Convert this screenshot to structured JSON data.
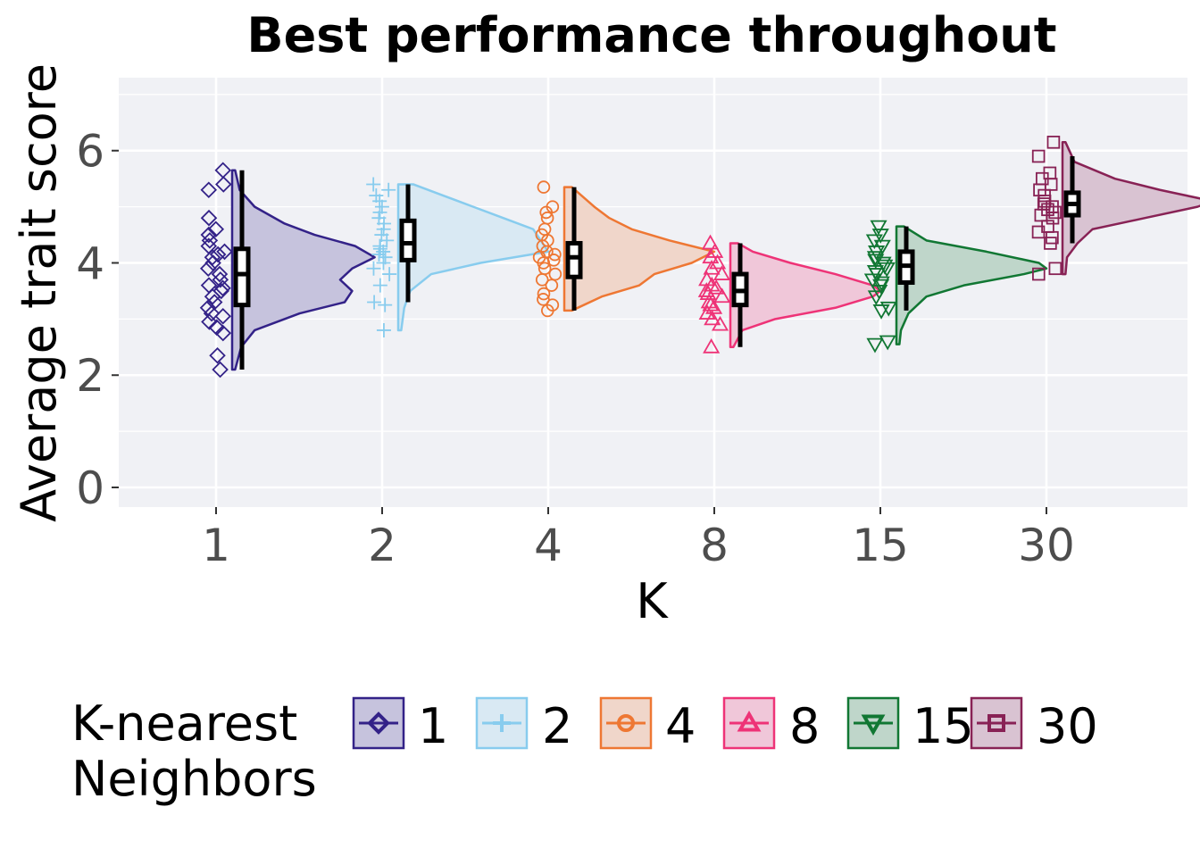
{
  "chart_data": {
    "type": "raincloud",
    "title": "Best performance throughout",
    "xlabel": "K",
    "ylabel": "Average trait score",
    "ylim": [
      -0.35,
      7.3
    ],
    "yticks": [
      0,
      2,
      4,
      6
    ],
    "yticklabels": [
      "0",
      "2",
      "4",
      "6"
    ],
    "grid": true,
    "legend": {
      "title": "K-nearest\nNeighbors",
      "position": "bottom"
    },
    "series": [
      {
        "name": "1",
        "category": "1",
        "color": "#332288",
        "shape": "diamond",
        "min": 2.1,
        "q1": 3.25,
        "median": 3.8,
        "q3": 4.25,
        "max": 5.65,
        "whisker_low": 2.1,
        "whisker_high": 5.65,
        "density": [
          [
            2.1,
            0.02
          ],
          [
            2.5,
            0.06
          ],
          [
            2.8,
            0.15
          ],
          [
            3.1,
            0.45
          ],
          [
            3.3,
            0.75
          ],
          [
            3.5,
            0.8
          ],
          [
            3.7,
            0.72
          ],
          [
            3.9,
            0.8
          ],
          [
            4.1,
            0.95
          ],
          [
            4.3,
            0.82
          ],
          [
            4.5,
            0.55
          ],
          [
            4.7,
            0.35
          ],
          [
            5.0,
            0.15
          ],
          [
            5.3,
            0.05
          ],
          [
            5.65,
            0.02
          ]
        ],
        "points": [
          2.1,
          2.35,
          2.75,
          2.85,
          2.95,
          3.05,
          3.1,
          3.2,
          3.3,
          3.4,
          3.5,
          3.55,
          3.6,
          3.7,
          3.8,
          3.9,
          4.0,
          4.1,
          4.15,
          4.2,
          4.3,
          4.4,
          4.5,
          4.6,
          4.8,
          5.3,
          5.4,
          5.65
        ]
      },
      {
        "name": "2",
        "category": "2",
        "color": "#88CCEE",
        "shape": "plus",
        "min": 2.8,
        "q1": 4.05,
        "median": 4.35,
        "q3": 4.75,
        "max": 5.4,
        "whisker_low": 3.3,
        "whisker_high": 5.4,
        "density": [
          [
            2.8,
            0.02
          ],
          [
            3.2,
            0.04
          ],
          [
            3.5,
            0.08
          ],
          [
            3.8,
            0.22
          ],
          [
            4.0,
            0.55
          ],
          [
            4.2,
            1.0
          ],
          [
            4.4,
            0.95
          ],
          [
            4.6,
            0.9
          ],
          [
            4.8,
            0.7
          ],
          [
            5.0,
            0.5
          ],
          [
            5.2,
            0.3
          ],
          [
            5.4,
            0.1
          ]
        ],
        "points": [
          2.8,
          3.25,
          3.3,
          3.6,
          3.8,
          3.9,
          4.0,
          4.1,
          4.15,
          4.2,
          4.25,
          4.3,
          4.4,
          4.5,
          4.6,
          4.7,
          4.8,
          4.9,
          5.0,
          5.1,
          5.2,
          5.3,
          5.4
        ]
      },
      {
        "name": "4",
        "category": "4",
        "color": "#EE7733",
        "shape": "circle",
        "min": 3.15,
        "q1": 3.75,
        "median": 4.1,
        "q3": 4.35,
        "max": 5.35,
        "whisker_low": 3.15,
        "whisker_high": 5.35,
        "density": [
          [
            3.15,
            0.05
          ],
          [
            3.4,
            0.25
          ],
          [
            3.6,
            0.5
          ],
          [
            3.8,
            0.6
          ],
          [
            4.0,
            0.85
          ],
          [
            4.2,
            1.0
          ],
          [
            4.4,
            0.7
          ],
          [
            4.6,
            0.45
          ],
          [
            4.8,
            0.3
          ],
          [
            5.0,
            0.2
          ],
          [
            5.35,
            0.05
          ]
        ],
        "points": [
          3.15,
          3.25,
          3.35,
          3.45,
          3.6,
          3.7,
          3.8,
          3.9,
          4.0,
          4.05,
          4.1,
          4.15,
          4.2,
          4.3,
          4.4,
          4.5,
          4.6,
          4.8,
          4.9,
          5.0,
          5.35
        ]
      },
      {
        "name": "8",
        "category": "8",
        "color": "#EE3377",
        "shape": "triangle-up",
        "min": 2.5,
        "q1": 3.25,
        "median": 3.5,
        "q3": 3.8,
        "max": 4.35,
        "whisker_low": 2.5,
        "whisker_high": 4.35,
        "density": [
          [
            2.5,
            0.02
          ],
          [
            2.8,
            0.08
          ],
          [
            3.0,
            0.3
          ],
          [
            3.2,
            0.7
          ],
          [
            3.4,
            0.95
          ],
          [
            3.5,
            1.0
          ],
          [
            3.6,
            0.95
          ],
          [
            3.8,
            0.7
          ],
          [
            4.0,
            0.4
          ],
          [
            4.2,
            0.15
          ],
          [
            4.35,
            0.05
          ]
        ],
        "points": [
          2.5,
          2.9,
          3.0,
          3.1,
          3.2,
          3.25,
          3.3,
          3.4,
          3.45,
          3.5,
          3.55,
          3.6,
          3.7,
          3.8,
          3.9,
          4.0,
          4.1,
          4.2,
          4.35
        ]
      },
      {
        "name": "15",
        "category": "15",
        "color": "#117733",
        "shape": "triangle-down",
        "min": 2.55,
        "q1": 3.65,
        "median": 3.95,
        "q3": 4.2,
        "max": 4.65,
        "whisker_low": 3.15,
        "whisker_high": 4.65,
        "density": [
          [
            2.55,
            0.02
          ],
          [
            2.8,
            0.03
          ],
          [
            3.1,
            0.08
          ],
          [
            3.4,
            0.2
          ],
          [
            3.6,
            0.45
          ],
          [
            3.8,
            0.85
          ],
          [
            3.9,
            1.0
          ],
          [
            4.0,
            0.95
          ],
          [
            4.2,
            0.6
          ],
          [
            4.4,
            0.2
          ],
          [
            4.65,
            0.05
          ]
        ],
        "points": [
          2.55,
          2.6,
          3.15,
          3.2,
          3.4,
          3.5,
          3.6,
          3.65,
          3.7,
          3.8,
          3.85,
          3.9,
          3.95,
          4.0,
          4.05,
          4.1,
          4.2,
          4.3,
          4.4,
          4.5,
          4.65
        ]
      },
      {
        "name": "30",
        "category": "30",
        "color": "#882255",
        "shape": "square",
        "min": 3.8,
        "q1": 4.85,
        "median": 5.05,
        "q3": 5.25,
        "max": 6.15,
        "whisker_low": 4.35,
        "whisker_high": 5.9,
        "density": [
          [
            3.8,
            0.02
          ],
          [
            4.1,
            0.03
          ],
          [
            4.35,
            0.1
          ],
          [
            4.6,
            0.2
          ],
          [
            4.8,
            0.55
          ],
          [
            5.0,
            0.9
          ],
          [
            5.1,
            1.0
          ],
          [
            5.3,
            0.65
          ],
          [
            5.5,
            0.35
          ],
          [
            5.8,
            0.08
          ],
          [
            6.15,
            0.02
          ]
        ],
        "points": [
          3.8,
          3.9,
          4.35,
          4.45,
          4.55,
          4.65,
          4.8,
          4.85,
          4.9,
          4.95,
          5.0,
          5.05,
          5.1,
          5.2,
          5.3,
          5.4,
          5.5,
          5.6,
          5.9,
          6.15
        ]
      }
    ]
  }
}
